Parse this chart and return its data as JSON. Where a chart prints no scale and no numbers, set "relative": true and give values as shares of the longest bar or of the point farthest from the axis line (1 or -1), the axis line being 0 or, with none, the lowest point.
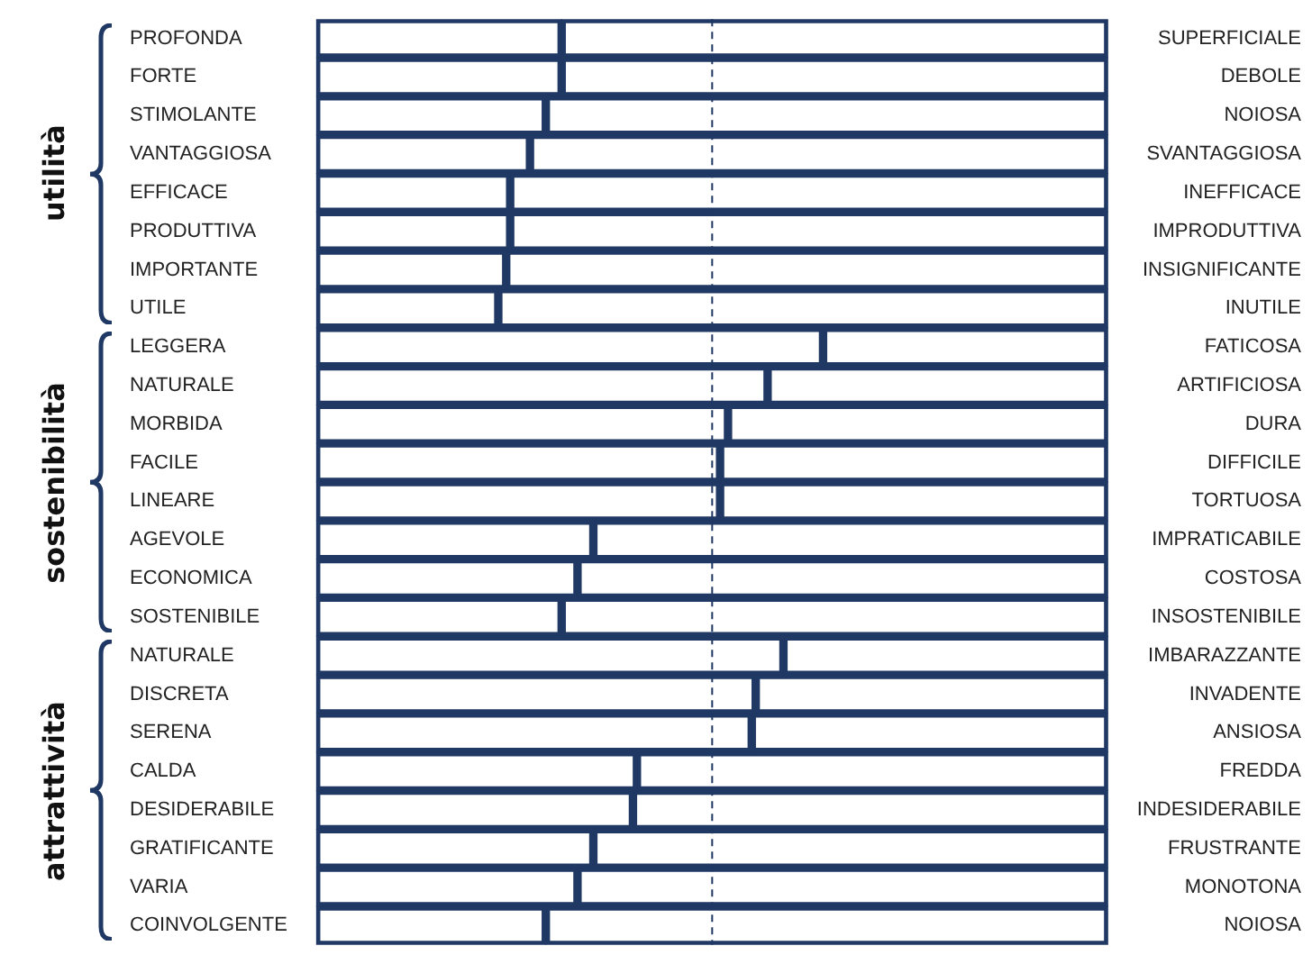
{
  "chart_data": {
    "type": "bar",
    "orientation": "horizontal",
    "stacked": true,
    "relative": true,
    "legend": false,
    "categories": [
      "PROFONDA",
      "FORTE",
      "STIMOLANTE",
      "VANTAGGIOSA",
      "EFFICACE",
      "PRODUTTIVA",
      "IMPORTANTE",
      "UTILE",
      "LEGGERA",
      "NATURALE",
      "MORBIDA",
      "FACILE",
      "LINEARE",
      "AGEVOLE",
      "ECONOMICA",
      "SOSTENIBILE",
      "NATURALE",
      "DISCRETA",
      "SERENA",
      "CALDA",
      "DESIDERABILE",
      "GRATIFICANTE",
      "VARIA",
      "COINVOLGENTE"
    ],
    "y2_categories": [
      "SUPERFICIALE",
      "DEBOLE",
      "NOIOSA",
      "SVANTAGGIOSA",
      "INEFFICACE",
      "IMPRODUTTIVA",
      "INSIGNIFICANTE",
      "INUTILE",
      "FATICOSA",
      "ARTIFICIOSA",
      "DURA",
      "DIFFICILE",
      "TORTUOSA",
      "IMPRATICABILE",
      "COSTOSA",
      "INSOSTENIBILE",
      "IMBARAZZANTE",
      "INVADENTE",
      "ANSIOSA",
      "FREDDA",
      "INDESIDERABILE",
      "FRUSTRANTE",
      "MONOTONA",
      "NOIOSA"
    ],
    "series": [
      {
        "color": "#1f3864",
        "values": [
          0.31,
          0.31,
          0.29,
          0.27,
          0.245,
          0.245,
          0.24,
          0.23,
          0.64,
          0.57,
          0.52,
          0.51,
          0.51,
          0.35,
          0.33,
          0.31,
          0.59,
          0.555,
          0.55,
          0.405,
          0.4,
          0.35,
          0.33,
          0.29
        ]
      },
      {
        "color": "#1f3864",
        "values": [
          0.69,
          0.69,
          0.71,
          0.73,
          0.755,
          0.755,
          0.76,
          0.77,
          0.36,
          0.43,
          0.48,
          0.49,
          0.49,
          0.65,
          0.67,
          0.69,
          0.41,
          0.445,
          0.45,
          0.595,
          0.6,
          0.65,
          0.67,
          0.71
        ]
      }
    ],
    "ref_lines": [
      {
        "axis": "x",
        "value": 0.5,
        "color": "#1f3864",
        "line_style": "dashed"
      }
    ],
    "annotations": [
      "utilità",
      "sostenibilità",
      "attrattività"
    ]
  }
}
